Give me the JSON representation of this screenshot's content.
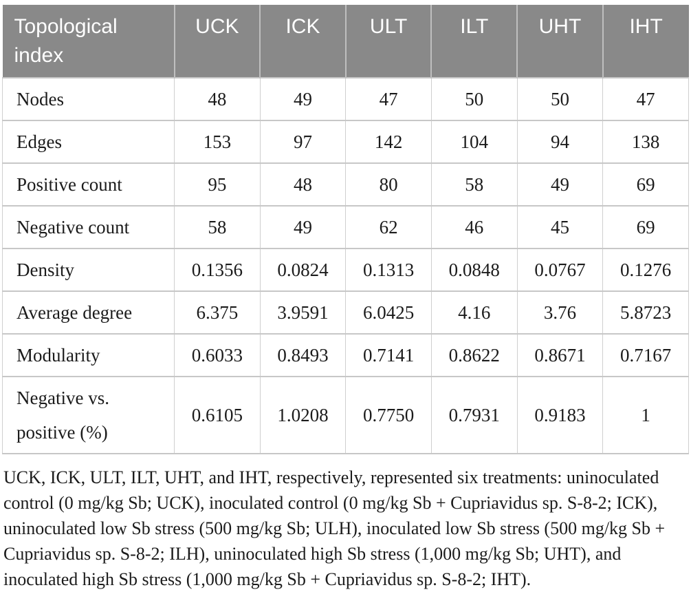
{
  "table": {
    "corner_header": "Topological index",
    "columns": [
      "UCK",
      "ICK",
      "ULT",
      "ILT",
      "UHT",
      "IHT"
    ],
    "rows": [
      {
        "label": "Nodes",
        "values": [
          "48",
          "49",
          "47",
          "50",
          "50",
          "47"
        ]
      },
      {
        "label": "Edges",
        "values": [
          "153",
          "97",
          "142",
          "104",
          "94",
          "138"
        ]
      },
      {
        "label": "Positive count",
        "values": [
          "95",
          "48",
          "80",
          "58",
          "49",
          "69"
        ]
      },
      {
        "label": "Negative count",
        "values": [
          "58",
          "49",
          "62",
          "46",
          "45",
          "69"
        ]
      },
      {
        "label": "Density",
        "values": [
          "0.1356",
          "0.0824",
          "0.1313",
          "0.0848",
          "0.0767",
          "0.1276"
        ]
      },
      {
        "label": "Average degree",
        "values": [
          "6.375",
          "3.9591",
          "6.0425",
          "4.16",
          "3.76",
          "5.8723"
        ]
      },
      {
        "label": "Modularity",
        "values": [
          "0.6033",
          "0.8493",
          "0.7141",
          "0.8622",
          "0.8671",
          "0.7167"
        ]
      },
      {
        "label": "Negative vs. positive (%)",
        "values": [
          "0.6105",
          "1.0208",
          "0.7750",
          "0.7931",
          "0.9183",
          "1"
        ]
      }
    ]
  },
  "footnote": "UCK, ICK, ULT, ILT, UHT, and IHT, respectively, represented six treatments: uninoculated control (0 mg/kg Sb; UCK), inoculated control (0 mg/kg Sb + Cupriavidus sp. S-8-2; ICK), uninoculated low Sb stress (500 mg/kg Sb; ULH), inoculated low Sb stress (500 mg/kg Sb + Cupriavidus sp. S-8-2; ILH), uninoculated high Sb stress (1,000 mg/kg Sb; UHT), and inoculated high Sb stress (1,000 mg/kg Sb + Cupriavidus sp. S-8-2; IHT).",
  "colors": {
    "header_bg": "#898989",
    "header_text": "#ffffff",
    "header_divider": "#bfbfbf",
    "body_border": "#cfcfcf",
    "body_text": "#1b1b1b"
  }
}
